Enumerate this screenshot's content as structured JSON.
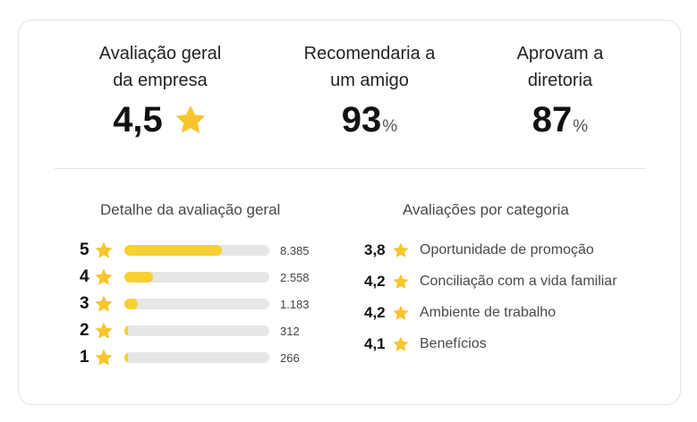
{
  "summary": {
    "overall": {
      "label_line1": "Avaliação geral",
      "label_line2": "da empresa",
      "value": "4,5"
    },
    "recommend": {
      "label_line1": "Recomendaria a",
      "label_line2": "um amigo",
      "value": "93",
      "unit": "%"
    },
    "approve": {
      "label_line1": "Aprovam a",
      "label_line2": "diretoria",
      "value": "87",
      "unit": "%"
    }
  },
  "distribution": {
    "title": "Detalhe da avaliação geral",
    "rows": [
      {
        "stars": "5",
        "count": "8.385",
        "fill_fraction": 0.67
      },
      {
        "stars": "4",
        "count": "2.558",
        "fill_fraction": 0.2
      },
      {
        "stars": "3",
        "count": "1.183",
        "fill_fraction": 0.09
      },
      {
        "stars": "2",
        "count": "312",
        "fill_fraction": 0.02
      },
      {
        "stars": "1",
        "count": "266",
        "fill_fraction": 0.02
      }
    ]
  },
  "categories": {
    "title": "Avaliações por categoria",
    "items": [
      {
        "score": "3,8",
        "label": "Oportunidade de promoção"
      },
      {
        "score": "4,2",
        "label": "Conciliação com a vida familiar"
      },
      {
        "score": "4,2",
        "label": "Ambiente de trabalho"
      },
      {
        "score": "4,1",
        "label": "Benefícios"
      }
    ]
  },
  "colors": {
    "star": "#f7c52c",
    "bar_fill": "#f7d031",
    "bar_track": "#e6e6e6"
  }
}
